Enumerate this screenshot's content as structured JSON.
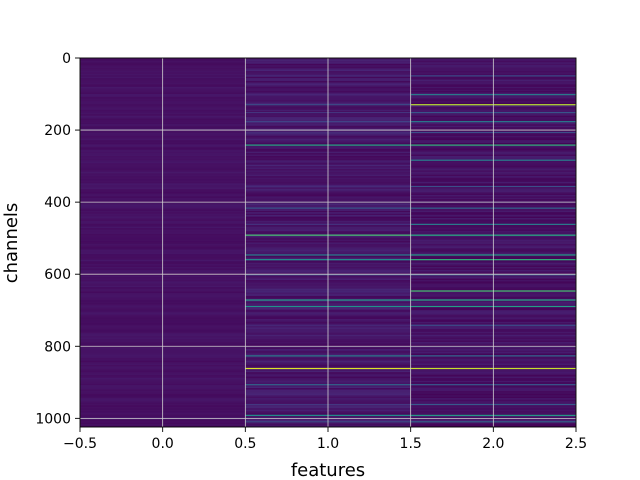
{
  "chart_data": {
    "type": "heatmap",
    "colormap": "viridis",
    "xlabel": "features",
    "ylabel": "channels",
    "xlim": [
      -0.5,
      2.5
    ],
    "ylim": [
      1024,
      0
    ],
    "x_ticks": [
      -0.5,
      0.0,
      0.5,
      1.0,
      1.5,
      2.0,
      2.5
    ],
    "x_tick_labels": [
      "−0.5",
      "0.0",
      "0.5",
      "1.0",
      "1.5",
      "2.0",
      "2.5"
    ],
    "y_ticks": [
      0,
      200,
      400,
      600,
      800,
      1000
    ],
    "y_tick_labels": [
      "0",
      "200",
      "400",
      "600",
      "800",
      "1000"
    ],
    "grid": true,
    "n_channels": 1024,
    "features": [
      0,
      1,
      2
    ],
    "bright_rows": [
      {
        "channel": 48,
        "values": [
          0.06,
          0.15,
          0.3
        ]
      },
      {
        "channel": 100,
        "values": [
          0.06,
          0.1,
          0.45
        ]
      },
      {
        "channel": 128,
        "values": [
          0.06,
          0.3,
          0.9
        ]
      },
      {
        "channel": 150,
        "values": [
          0.06,
          0.2,
          0.35
        ]
      },
      {
        "channel": 175,
        "values": [
          0.06,
          0.25,
          0.45
        ]
      },
      {
        "channel": 205,
        "values": [
          0.06,
          0.15,
          0.3
        ]
      },
      {
        "channel": 240,
        "values": [
          0.06,
          0.6,
          0.65
        ]
      },
      {
        "channel": 282,
        "values": [
          0.06,
          0.12,
          0.45
        ]
      },
      {
        "channel": 355,
        "values": [
          0.06,
          0.15,
          0.3
        ]
      },
      {
        "channel": 415,
        "values": [
          0.06,
          0.35,
          0.4
        ]
      },
      {
        "channel": 460,
        "values": [
          0.06,
          0.18,
          0.45
        ]
      },
      {
        "channel": 490,
        "values": [
          0.06,
          0.7,
          0.62
        ]
      },
      {
        "channel": 545,
        "values": [
          0.06,
          0.45,
          0.55
        ]
      },
      {
        "channel": 558,
        "values": [
          0.06,
          0.5,
          0.65
        ]
      },
      {
        "channel": 600,
        "values": [
          0.06,
          0.3,
          0.35
        ]
      },
      {
        "channel": 645,
        "values": [
          0.06,
          0.15,
          0.7
        ]
      },
      {
        "channel": 670,
        "values": [
          0.06,
          0.55,
          0.6
        ]
      },
      {
        "channel": 688,
        "values": [
          0.06,
          0.5,
          0.55
        ]
      },
      {
        "channel": 740,
        "values": [
          0.06,
          0.15,
          0.3
        ]
      },
      {
        "channel": 825,
        "values": [
          0.06,
          0.45,
          0.4
        ]
      },
      {
        "channel": 860,
        "values": [
          0.06,
          0.95,
          0.92
        ]
      },
      {
        "channel": 905,
        "values": [
          0.06,
          0.4,
          0.35
        ]
      },
      {
        "channel": 960,
        "values": [
          0.06,
          0.2,
          0.35
        ]
      },
      {
        "channel": 990,
        "values": [
          0.06,
          0.5,
          0.55
        ]
      },
      {
        "channel": 1008,
        "values": [
          0.06,
          0.3,
          0.4
        ]
      }
    ]
  }
}
